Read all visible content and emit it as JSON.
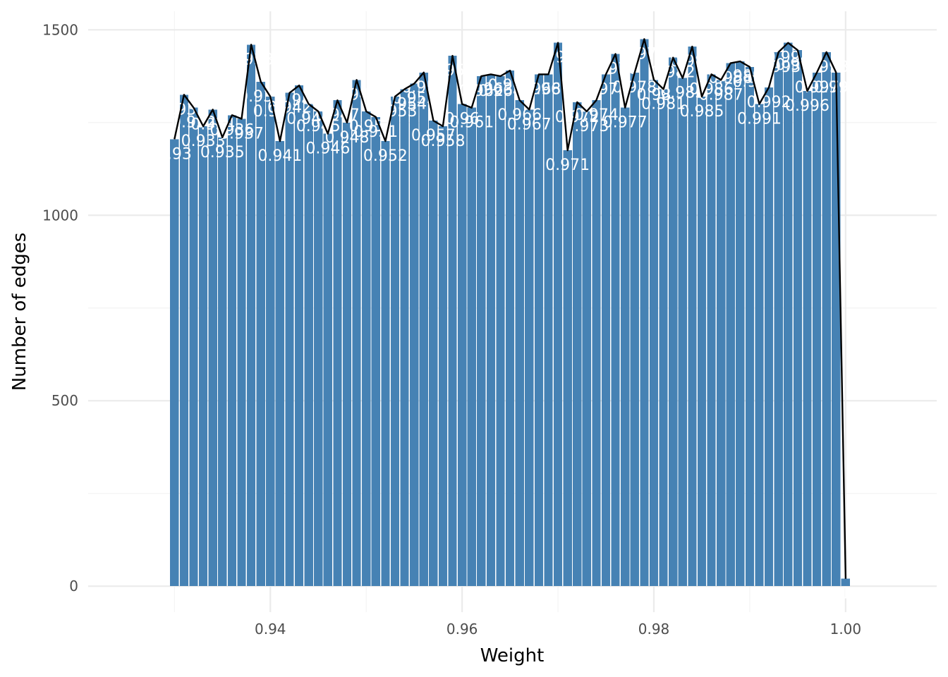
{
  "chart_data": {
    "type": "bar",
    "xlabel": "Weight",
    "ylabel": "Number of edges",
    "xlim": [
      0.921,
      1.0095
    ],
    "ylim": [
      -70,
      1550
    ],
    "x_ticks": [
      0.94,
      0.96,
      0.98,
      1.0
    ],
    "x_tick_labels": [
      "0.94",
      "0.96",
      "0.98",
      "1.00"
    ],
    "y_ticks": [
      0,
      500,
      1000,
      1500
    ],
    "y_tick_labels": [
      "0",
      "500",
      "1000",
      "1500"
    ],
    "grid": true,
    "bar_color": "#4682B4",
    "line_color": "#000000",
    "label_color": "#ffffff",
    "x": [
      0.93,
      0.931,
      0.932,
      0.933,
      0.934,
      0.935,
      0.936,
      0.937,
      0.938,
      0.939,
      0.94,
      0.941,
      0.942,
      0.943,
      0.944,
      0.945,
      0.946,
      0.947,
      0.948,
      0.949,
      0.95,
      0.951,
      0.952,
      0.953,
      0.954,
      0.955,
      0.956,
      0.957,
      0.958,
      0.959,
      0.96,
      0.961,
      0.962,
      0.963,
      0.964,
      0.965,
      0.966,
      0.967,
      0.968,
      0.969,
      0.97,
      0.971,
      0.972,
      0.973,
      0.974,
      0.975,
      0.976,
      0.977,
      0.978,
      0.979,
      0.98,
      0.981,
      0.982,
      0.983,
      0.984,
      0.985,
      0.986,
      0.987,
      0.988,
      0.989,
      0.99,
      0.991,
      0.992,
      0.993,
      0.994,
      0.995,
      0.996,
      0.997,
      0.998,
      0.999,
      1.0
    ],
    "values": [
      1205,
      1325,
      1290,
      1240,
      1285,
      1210,
      1270,
      1260,
      1460,
      1360,
      1320,
      1200,
      1330,
      1350,
      1300,
      1280,
      1220,
      1310,
      1250,
      1365,
      1280,
      1265,
      1200,
      1320,
      1340,
      1355,
      1385,
      1255,
      1240,
      1430,
      1300,
      1290,
      1375,
      1380,
      1375,
      1390,
      1310,
      1285,
      1380,
      1380,
      1465,
      1175,
      1305,
      1280,
      1310,
      1380,
      1435,
      1290,
      1385,
      1475,
      1365,
      1340,
      1425,
      1370,
      1455,
      1320,
      1380,
      1365,
      1410,
      1415,
      1400,
      1300,
      1345,
      1440,
      1465,
      1445,
      1335,
      1385,
      1440,
      1385,
      20
    ],
    "labels": [
      "0.93",
      "0.931",
      "0.932",
      "0.933",
      "0.934",
      "0.935",
      "0.936",
      "0.937",
      "0.938",
      "0.939",
      "0.94",
      "0.941",
      "0.942",
      "0.943",
      "0.944",
      "0.945",
      "0.946",
      "0.947",
      "0.948",
      "0.949",
      "0.95",
      "0.951",
      "0.952",
      "0.953",
      "0.954",
      "0.955",
      "0.956",
      "0.957",
      "0.958",
      "0.959",
      "0.96",
      "0.961",
      "0.962",
      "0.963",
      "0.964",
      "0.965",
      "0.966",
      "0.967",
      "0.968",
      "0.969",
      "0.97",
      "0.971",
      "0.972",
      "0.973",
      "0.974",
      "0.975",
      "0.976",
      "0.977",
      "0.978",
      "0.979",
      "0.98",
      "0.981",
      "0.982",
      "0.983",
      "0.984",
      "0.985",
      "0.986",
      "0.987",
      "0.988",
      "0.989",
      "0.99",
      "0.991",
      "0.992",
      "0.993",
      "0.994",
      "0.995",
      "0.996",
      "0.997",
      "0.998",
      "0.999",
      "1"
    ]
  }
}
